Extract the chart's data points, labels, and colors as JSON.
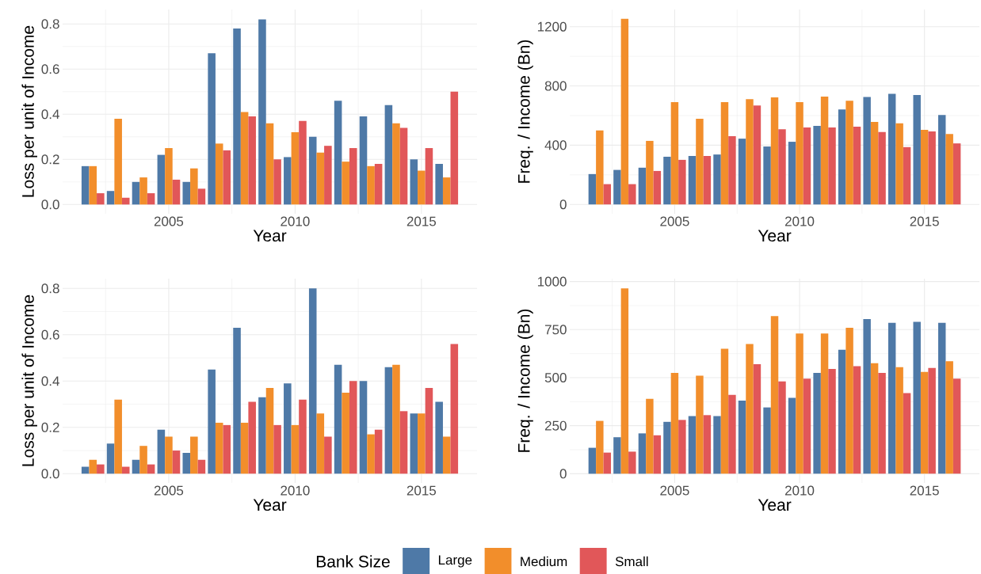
{
  "chart_data": [
    {
      "type": "bar",
      "xlabel": "Year",
      "ylabel": "Loss per unit of Income",
      "x": [
        2002,
        2003,
        2004,
        2005,
        2006,
        2007,
        2008,
        2009,
        2010,
        2011,
        2012,
        2013,
        2014,
        2015,
        2016
      ],
      "xlim": [
        2000.8,
        2017.2
      ],
      "xticks": [
        2005,
        2010,
        2015
      ],
      "ylim": [
        -0.041,
        0.864
      ],
      "yticks": [
        {
          "value": 0,
          "label": "0.0"
        },
        {
          "value": 0.2,
          "label": "0.2"
        },
        {
          "value": 0.4,
          "label": "0.4"
        },
        {
          "value": 0.6,
          "label": "0.6"
        },
        {
          "value": 0.8,
          "label": "0.8"
        }
      ],
      "grid": true,
      "legend": "bottom",
      "legend_title": "Bank Size",
      "series": [
        {
          "name": "Large",
          "color": "#4e79a7",
          "values": [
            0.17,
            0.06,
            0.1,
            0.22,
            0.1,
            0.67,
            0.78,
            0.82,
            0.21,
            0.3,
            0.46,
            0.39,
            0.44,
            0.2,
            0.18
          ]
        },
        {
          "name": "Medium",
          "color": "#f28e2b",
          "values": [
            0.17,
            0.38,
            0.12,
            0.25,
            0.16,
            0.27,
            0.41,
            0.36,
            0.32,
            0.23,
            0.19,
            0.17,
            0.36,
            0.15,
            0.12
          ]
        },
        {
          "name": "Small",
          "color": "#e15759",
          "values": [
            0.05,
            0.03,
            0.05,
            0.11,
            0.07,
            0.24,
            0.39,
            0.2,
            0.37,
            0.26,
            0.25,
            0.18,
            0.34,
            0.25,
            0.5
          ]
        }
      ]
    },
    {
      "type": "bar",
      "xlabel": "Year",
      "ylabel": "Freq. / Income (Bn)",
      "x": [
        2002,
        2003,
        2004,
        2005,
        2006,
        2007,
        2008,
        2009,
        2010,
        2011,
        2012,
        2013,
        2014,
        2015,
        2016
      ],
      "xlim": [
        2000.8,
        2017.2
      ],
      "xticks": [
        2005,
        2010,
        2015
      ],
      "ylim": [
        -63,
        1316
      ],
      "yticks": [
        0,
        400,
        800,
        1200
      ],
      "grid": true,
      "series": [
        {
          "color": "#4e79a7",
          "values": [
            205,
            233,
            248,
            322,
            327,
            337,
            444,
            391,
            423,
            530,
            641,
            726,
            747,
            739,
            604
          ]
        },
        {
          "color": "#f28e2b",
          "values": [
            500,
            1253,
            429,
            690,
            579,
            690,
            711,
            722,
            690,
            728,
            700,
            557,
            547,
            504,
            476
          ]
        },
        {
          "color": "#e15759",
          "values": [
            137,
            137,
            226,
            301,
            327,
            461,
            668,
            508,
            519,
            519,
            525,
            489,
            387,
            493,
            412
          ]
        }
      ]
    },
    {
      "type": "bar",
      "xlabel": "Year",
      "ylabel": "Loss per unit of Income",
      "x": [
        2002,
        2003,
        2004,
        2005,
        2006,
        2007,
        2008,
        2009,
        2010,
        2011,
        2012,
        2013,
        2014,
        2015,
        2016
      ],
      "xlim": [
        2000.8,
        2017.2
      ],
      "xticks": [
        2005,
        2010,
        2015
      ],
      "ylim": [
        -0.04,
        0.842
      ],
      "yticks": [
        {
          "value": 0,
          "label": "0.0"
        },
        {
          "value": 0.2,
          "label": "0.2"
        },
        {
          "value": 0.4,
          "label": "0.4"
        },
        {
          "value": 0.6,
          "label": "0.6"
        },
        {
          "value": 0.8,
          "label": "0.8"
        }
      ],
      "grid": true,
      "series": [
        {
          "color": "#4e79a7",
          "values": [
            0.03,
            0.13,
            0.06,
            0.19,
            0.09,
            0.45,
            0.63,
            0.33,
            0.39,
            0.8,
            0.47,
            0.4,
            0.46,
            0.26,
            0.31
          ]
        },
        {
          "color": "#f28e2b",
          "values": [
            0.06,
            0.32,
            0.12,
            0.16,
            0.16,
            0.22,
            0.22,
            0.37,
            0.21,
            0.26,
            0.35,
            0.17,
            0.47,
            0.26,
            0.16
          ]
        },
        {
          "color": "#e15759",
          "values": [
            0.04,
            0.03,
            0.04,
            0.1,
            0.06,
            0.21,
            0.31,
            0.21,
            0.32,
            0.16,
            0.4,
            0.19,
            0.27,
            0.37,
            0.56
          ]
        }
      ]
    },
    {
      "type": "bar",
      "xlabel": "Year",
      "ylabel": "Freq. / Income (Bn)",
      "x": [
        2002,
        2003,
        2004,
        2005,
        2006,
        2007,
        2008,
        2009,
        2010,
        2011,
        2012,
        2013,
        2014,
        2015,
        2016
      ],
      "xlim": [
        2000.8,
        2017.2
      ],
      "xticks": [
        2005,
        2010,
        2015
      ],
      "ylim": [
        -48,
        1015
      ],
      "yticks": [
        0,
        250,
        500,
        750,
        1000
      ],
      "grid": true,
      "series": [
        {
          "color": "#4e79a7",
          "values": [
            135,
            190,
            210,
            270,
            300,
            300,
            380,
            345,
            395,
            525,
            645,
            805,
            785,
            790,
            785
          ]
        },
        {
          "color": "#f28e2b",
          "values": [
            275,
            965,
            390,
            525,
            510,
            650,
            675,
            820,
            730,
            730,
            760,
            575,
            555,
            530,
            585
          ]
        },
        {
          "color": "#e15759",
          "values": [
            110,
            115,
            200,
            280,
            305,
            410,
            570,
            480,
            495,
            545,
            560,
            525,
            420,
            550,
            495
          ]
        }
      ]
    }
  ]
}
